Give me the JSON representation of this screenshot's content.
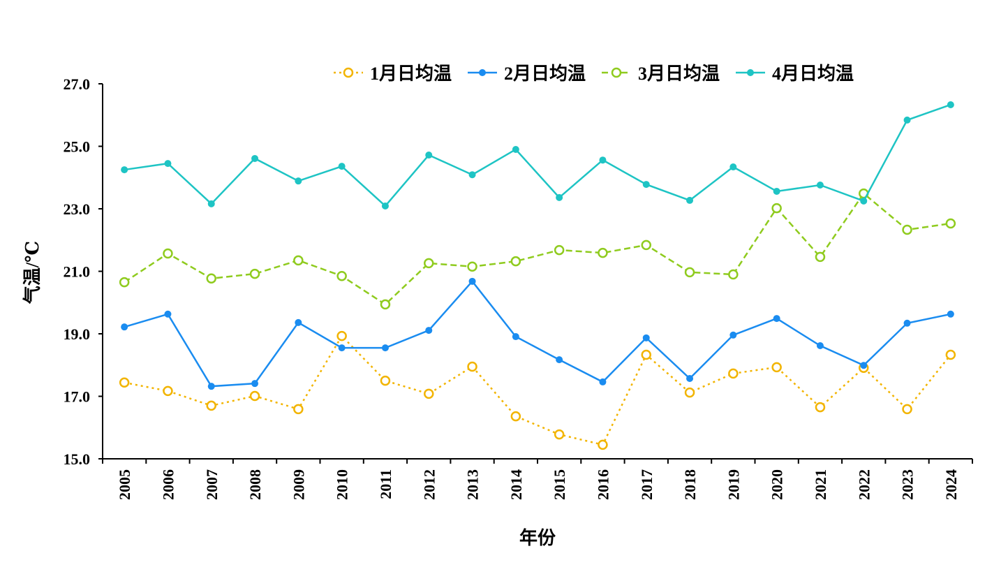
{
  "chart_data": {
    "type": "line",
    "title": "",
    "xlabel": "年份",
    "ylabel": "气温/℃",
    "ylim": [
      15.0,
      27.0
    ],
    "yticks": [
      "15.0",
      "17.0",
      "19.0",
      "21.0",
      "23.0",
      "25.0",
      "27.0"
    ],
    "grid": false,
    "legend_position": "top-center",
    "categories": [
      "2005",
      "2006",
      "2007",
      "2008",
      "2009",
      "2010",
      "2011",
      "2012",
      "2013",
      "2014",
      "2015",
      "2016",
      "2017",
      "2018",
      "2019",
      "2020",
      "2021",
      "2022",
      "2023",
      "2024"
    ],
    "series": [
      {
        "name": "1月日均温",
        "color": "#F2B400",
        "style": "dotted",
        "marker": "open-circle",
        "values": [
          17.44,
          17.17,
          16.7,
          17.01,
          16.59,
          18.93,
          17.5,
          17.08,
          17.95,
          16.36,
          15.78,
          15.45,
          18.33,
          17.12,
          17.73,
          17.93,
          16.65,
          17.91,
          16.59,
          18.33
        ]
      },
      {
        "name": "2月日均温",
        "color": "#1A8CF0",
        "style": "solid",
        "marker": "filled-circle",
        "values": [
          19.22,
          19.63,
          17.32,
          17.41,
          19.36,
          18.55,
          18.55,
          19.11,
          20.68,
          18.91,
          18.17,
          17.46,
          18.87,
          17.57,
          18.96,
          19.49,
          18.62,
          17.99,
          19.34,
          19.63
        ]
      },
      {
        "name": "3月日均温",
        "color": "#8FCB1E",
        "style": "dashed",
        "marker": "open-circle",
        "values": [
          20.65,
          21.57,
          20.77,
          20.92,
          21.35,
          20.85,
          19.94,
          21.26,
          21.15,
          21.32,
          21.68,
          21.59,
          21.84,
          20.97,
          20.9,
          23.02,
          21.46,
          23.49,
          22.33,
          22.53
        ]
      },
      {
        "name": "4月日均温",
        "color": "#1EC4C4",
        "style": "solid",
        "marker": "filled-circle",
        "values": [
          24.25,
          24.45,
          23.16,
          24.61,
          23.89,
          24.36,
          23.09,
          24.72,
          24.09,
          24.9,
          23.36,
          24.56,
          23.78,
          23.27,
          24.34,
          23.56,
          23.76,
          23.25,
          25.84,
          26.33
        ]
      }
    ]
  }
}
